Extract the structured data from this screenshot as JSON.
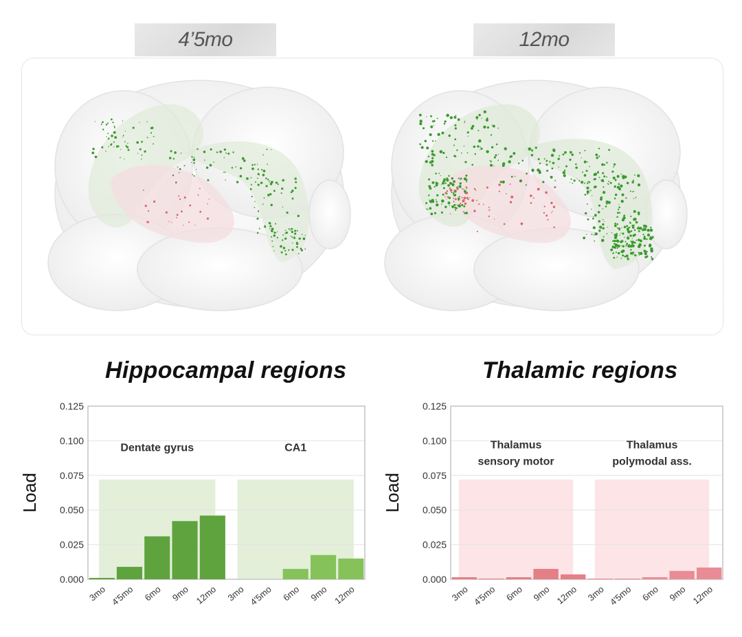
{
  "tags": {
    "left": "4’5mo",
    "right": "12mo"
  },
  "titles": {
    "left": "Hippocampal regions",
    "right": "Thalamic regions"
  },
  "chart_data": [
    {
      "type": "bar",
      "title": "Hippocampal regions",
      "ylabel": "Load",
      "ylim": [
        0,
        0.125
      ],
      "yticks": [
        "0.000",
        "0.025",
        "0.050",
        "0.075",
        "0.100",
        "0.125"
      ],
      "categories": [
        "3mo",
        "4'5mo",
        "6mo",
        "9mo",
        "12mo"
      ],
      "groups": [
        {
          "name": "Dentate gyrus",
          "values": [
            0.001,
            0.009,
            0.031,
            0.042,
            0.046
          ],
          "color": "#5fa33f",
          "band_color": "#e3efd9"
        },
        {
          "name": "CA1",
          "values": [
            0.0,
            0.0,
            0.0075,
            0.0175,
            0.015
          ],
          "color": "#86c25a",
          "band_color": "#e3efd9"
        }
      ],
      "band_top": 0.072,
      "grid": true
    },
    {
      "type": "bar",
      "title": "Thalamic regions",
      "ylabel": "Load",
      "ylim": [
        0,
        0.125
      ],
      "yticks": [
        "0.000",
        "0.025",
        "0.050",
        "0.075",
        "0.100",
        "0.125"
      ],
      "categories": [
        "3mo",
        "4'5mo",
        "6mo",
        "9mo",
        "12mo"
      ],
      "groups": [
        {
          "name": "Thalamus\nsensory motor",
          "values": [
            0.0015,
            0.0005,
            0.0015,
            0.0075,
            0.0035
          ],
          "color": "#e57f86",
          "band_color": "#fce4e7"
        },
        {
          "name": "Thalamus\npolymodal ass.",
          "values": [
            0.0005,
            0.0005,
            0.0015,
            0.006,
            0.0085
          ],
          "color": "#ea8c95",
          "band_color": "#fce4e7"
        }
      ],
      "band_top": 0.072,
      "grid": true
    }
  ]
}
